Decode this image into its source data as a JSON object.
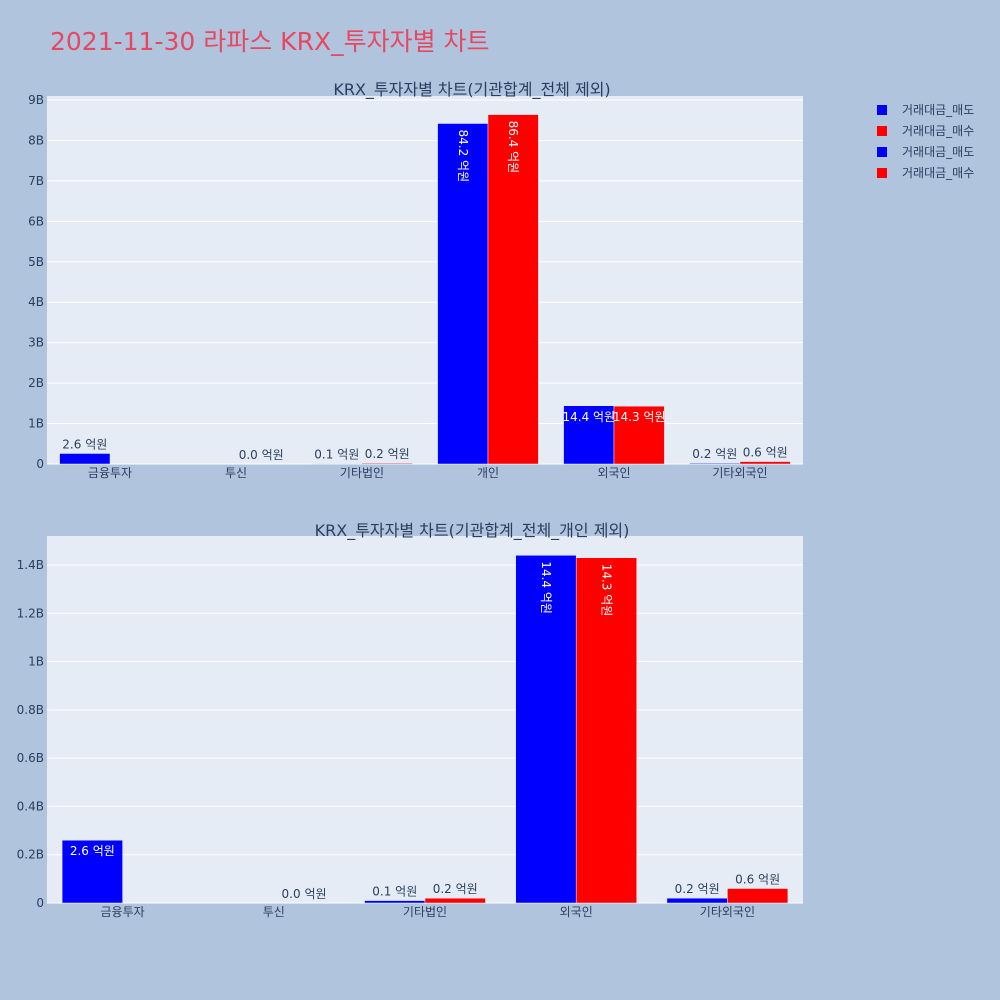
{
  "title": "2021-11-30 라파스 KRX_투자자별 차트",
  "colors": {
    "sell": "#0000ff",
    "buy": "#ff0000",
    "plot_bg": "#e5ecf6",
    "page_bg": "#b0c4de",
    "title": "#e8475f"
  },
  "legend": {
    "placement": "top-right",
    "entries": [
      {
        "label": "거래대금_매도",
        "color": "#0000ff"
      },
      {
        "label": "거래대금_매수",
        "color": "#ff0000"
      },
      {
        "label": "거래대금_매도",
        "color": "#0000ff"
      },
      {
        "label": "거래대금_매수",
        "color": "#ff0000"
      }
    ]
  },
  "chart_data": [
    {
      "type": "bar",
      "title": "KRX_투자자별 차트(기관합계_전체 제외)",
      "categories": [
        "금융투자",
        "투신",
        "기타법인",
        "개인",
        "외국인",
        "기타외국인"
      ],
      "series": [
        {
          "name": "거래대금_매도",
          "color": "#0000ff",
          "values": [
            260000000,
            0,
            10000000,
            8420000000,
            1440000000,
            20000000
          ],
          "labels": [
            "2.6 억원",
            "",
            "0.1 억원",
            "84.2 억원",
            "14.4 억원",
            "0.2 억원"
          ]
        },
        {
          "name": "거래대금_매수",
          "color": "#ff0000",
          "values": [
            0,
            0,
            20000000,
            8640000000,
            1430000000,
            60000000
          ],
          "labels": [
            "",
            "0.0 억원",
            "0.2 억원",
            "86.4 억원",
            "14.3 억원",
            "0.6 억원"
          ]
        }
      ],
      "yticks": [
        0,
        1000000000,
        2000000000,
        3000000000,
        4000000000,
        5000000000,
        6000000000,
        7000000000,
        8000000000,
        9000000000
      ],
      "ytick_labels": [
        "0",
        "1B",
        "2B",
        "3B",
        "4B",
        "5B",
        "6B",
        "7B",
        "8B",
        "9B"
      ],
      "ylim": [
        0,
        9100000000
      ],
      "grid": true
    },
    {
      "type": "bar",
      "title": "KRX_투자자별 차트(기관합계_전체_개인 제외)",
      "categories": [
        "금융투자",
        "투신",
        "기타법인",
        "외국인",
        "기타외국인"
      ],
      "series": [
        {
          "name": "거래대금_매도",
          "color": "#0000ff",
          "values": [
            260000000,
            0,
            10000000,
            1440000000,
            20000000
          ],
          "labels": [
            "2.6 억원",
            "",
            "0.1 억원",
            "14.4 억원",
            "0.2 억원"
          ]
        },
        {
          "name": "거래대금_매수",
          "color": "#ff0000",
          "values": [
            0,
            0,
            20000000,
            1430000000,
            60000000
          ],
          "labels": [
            "",
            "0.0 억원",
            "0.2 억원",
            "14.3 억원",
            "0.6 억원"
          ]
        }
      ],
      "yticks": [
        0,
        200000000,
        400000000,
        600000000,
        800000000,
        1000000000,
        1200000000,
        1400000000
      ],
      "ytick_labels": [
        "0",
        "0.2B",
        "0.4B",
        "0.6B",
        "0.8B",
        "1B",
        "1.2B",
        "1.4B"
      ],
      "ylim": [
        0,
        1520000000
      ],
      "grid": true
    }
  ]
}
